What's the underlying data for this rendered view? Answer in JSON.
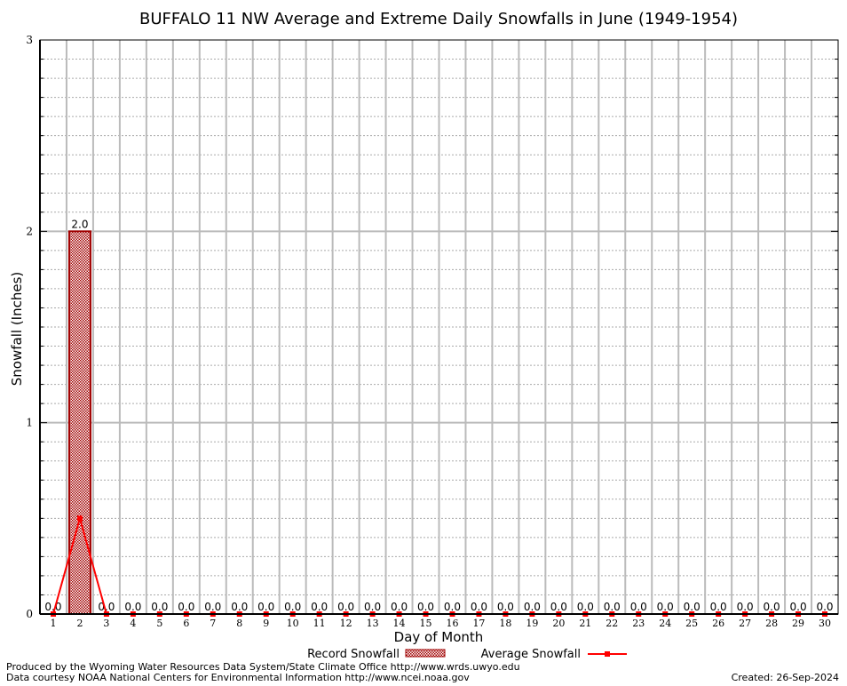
{
  "chart_data": {
    "type": "bar",
    "title": "BUFFALO 11 NW Average and Extreme Daily Snowfalls in June (1949-1954)",
    "xlabel": "Day of Month",
    "ylabel": "Snowfall (Inches)",
    "ylim": [
      0,
      3
    ],
    "yticks": [
      "0",
      "1",
      "2",
      "3"
    ],
    "grid": true,
    "legend_placement": "bottom",
    "categories": [
      "1",
      "2",
      "3",
      "4",
      "5",
      "6",
      "7",
      "8",
      "9",
      "10",
      "11",
      "12",
      "13",
      "14",
      "15",
      "16",
      "17",
      "18",
      "19",
      "20",
      "21",
      "22",
      "23",
      "24",
      "25",
      "26",
      "27",
      "28",
      "29",
      "30"
    ],
    "series": [
      {
        "name": "Record Snowfall",
        "type": "bar",
        "color": "#a00000",
        "values": [
          0,
          2.0,
          0,
          0,
          0,
          0,
          0,
          0,
          0,
          0,
          0,
          0,
          0,
          0,
          0,
          0,
          0,
          0,
          0,
          0,
          0,
          0,
          0,
          0,
          0,
          0,
          0,
          0,
          0,
          0
        ],
        "labels": [
          "0.0",
          "2.0",
          "0.0",
          "0.0",
          "0.0",
          "0.0",
          "0.0",
          "0.0",
          "0.0",
          "0.0",
          "0.0",
          "0.0",
          "0.0",
          "0.0",
          "0.0",
          "0.0",
          "0.0",
          "0.0",
          "0.0",
          "0.0",
          "0.0",
          "0.0",
          "0.0",
          "0.0",
          "0.0",
          "0.0",
          "0.0",
          "0.0",
          "0.0",
          "0.0"
        ]
      },
      {
        "name": "Average Snowfall",
        "type": "line",
        "color": "#ff0000",
        "values": [
          0,
          0.5,
          0,
          0,
          0,
          0,
          0,
          0,
          0,
          0,
          0,
          0,
          0,
          0,
          0,
          0,
          0,
          0,
          0,
          0,
          0,
          0,
          0,
          0,
          0,
          0,
          0,
          0,
          0,
          0
        ]
      }
    ]
  },
  "footer": {
    "produced_by": "Produced by the Wyoming Water Resources Data System/State Climate Office http://www.wrds.uwyo.edu",
    "data_courtesy": "Data courtesy NOAA National Centers for Environmental Information http://www.ncei.noaa.gov",
    "created": "Created: 26-Sep-2024"
  }
}
